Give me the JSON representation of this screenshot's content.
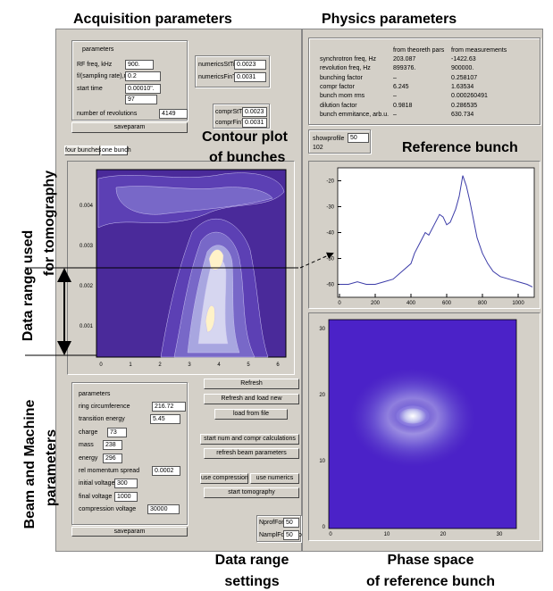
{
  "headings": {
    "acquisition": "Acquisition parameters",
    "physics": "Physics parameters",
    "contour": [
      "Contour plot",
      "of bunches"
    ],
    "reference": "Reference bunch",
    "data_range": [
      "Data range used",
      "for tomography"
    ],
    "beam": [
      "Beam and Machine",
      "parameters"
    ],
    "range_settings": [
      "Data range",
      "settings"
    ],
    "phase_space": [
      "Phase space",
      "of reference bunch"
    ]
  },
  "acquisition": {
    "title": "parameters",
    "fields": [
      {
        "label": "RF freq, kHz",
        "value": "900."
      },
      {
        "label": "f/(sampling rate),ns",
        "value": "0.2"
      },
      {
        "label": "start time",
        "value": "0.00010\"."
      },
      {
        "label": "number of revolutions",
        "value": "4149"
      }
    ],
    "start_count": "97",
    "button": "saveparam"
  },
  "times": [
    {
      "label": "numericsStTime",
      "value": "0.0023"
    },
    {
      "label": "numericsFinTime",
      "value": "0.0031"
    },
    {
      "label": "comprStTime",
      "value": "0.0023"
    },
    {
      "label": "comprFinTime",
      "value": "0.0031"
    }
  ],
  "physics": {
    "columns": [
      "from theoreth pars",
      "from measurements"
    ],
    "rows": [
      [
        "synchrotron freq, Hz",
        "203.087",
        "-1422.63"
      ],
      [
        "revolution freq, Hz",
        "899376.",
        "900000."
      ],
      [
        "bunching factor",
        "–",
        "0.258107"
      ],
      [
        "compr factor",
        "6.245",
        "1.63534"
      ],
      [
        "bunch mom rms",
        "–",
        "0.000260491"
      ],
      [
        "dilution factor",
        "0.9818",
        "0.286535"
      ],
      [
        "bunch emmitance, arb.u.",
        "–",
        "630.734"
      ]
    ]
  },
  "showprofile": {
    "label": "showprofile",
    "value": "50",
    "count": "102"
  },
  "tabs": [
    "four bunches",
    "one bunch"
  ],
  "contour_plot": {
    "yticks": [
      "0.004",
      "0.003",
      "0.002",
      "0.001"
    ],
    "xticks": [
      "0",
      "1",
      "2",
      "3",
      "4",
      "5",
      "6"
    ]
  },
  "reference_bunch": {
    "type": "line",
    "color": "#3c3ca8",
    "x": [
      0,
      50,
      100,
      150,
      200,
      250,
      300,
      350,
      400,
      420,
      450,
      480,
      500,
      530,
      560,
      580,
      600,
      620,
      650,
      670,
      690,
      710,
      730,
      750,
      770,
      800,
      830,
      860,
      900,
      950,
      1000,
      1050,
      1080
    ],
    "values": [
      -60,
      -60,
      -59,
      -60,
      -60,
      -59,
      -58,
      -55,
      -52,
      -48,
      -44,
      -40,
      -41,
      -37,
      -33,
      -34,
      -37,
      -36,
      -31,
      -26,
      -18,
      -22,
      -28,
      -35,
      -42,
      -48,
      -52,
      -55,
      -57,
      -58,
      -59,
      -60,
      -61
    ],
    "xlim": [
      0,
      1100
    ],
    "ylim": [
      -65,
      -15
    ],
    "xticks": [
      0,
      200,
      400,
      600,
      800,
      1000
    ],
    "yticks": [
      -20,
      -30,
      -40,
      -50,
      -60
    ]
  },
  "phase_plot": {
    "xticks": [
      "0",
      "10",
      "20",
      "30"
    ],
    "yticks": [
      "0",
      "10",
      "20",
      "30"
    ]
  },
  "beam": {
    "title": "parameters",
    "fields": [
      {
        "label": "ring circumference",
        "value": "216.72"
      },
      {
        "label": "transition energy",
        "value": "5.45"
      },
      {
        "label": "charge",
        "value": "73"
      },
      {
        "label": "mass",
        "value": "238"
      },
      {
        "label": "energy",
        "value": "296"
      },
      {
        "label": "rel momentum spread",
        "value": "0.0002"
      },
      {
        "label": "initial voltage",
        "value": "300"
      },
      {
        "label": "final voltage",
        "value": "1000"
      },
      {
        "label": "compression voltage",
        "value": "30000"
      }
    ],
    "button": "saveparam"
  },
  "buttons": [
    "Refresh",
    "Refresh and load new",
    "load from file",
    "start num and compr calculations",
    "refresh beam parameters",
    "use compression",
    "use numerics",
    "start tomography"
  ],
  "tomo": [
    {
      "label": "NprofForTomo",
      "value": "50"
    },
    {
      "label": "NamplForTomo",
      "value": "50"
    }
  ]
}
